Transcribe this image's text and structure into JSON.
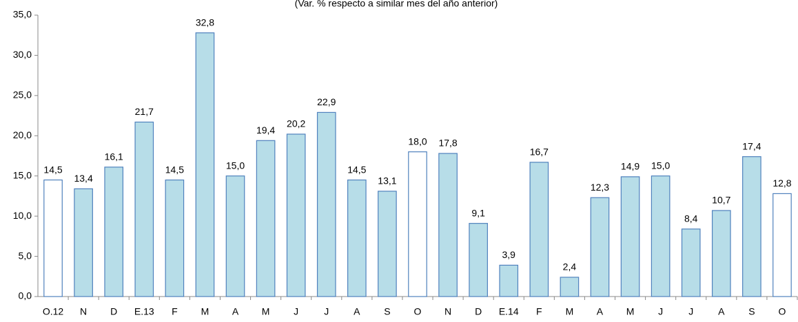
{
  "chart_data": {
    "type": "bar",
    "subtitle": "(Var. % respecto a similar mes del año anterior)",
    "categories": [
      "O.12",
      "N",
      "D",
      "E.13",
      "F",
      "M",
      "A",
      "M",
      "J",
      "J",
      "A",
      "S",
      "O",
      "N",
      "D",
      "E.14",
      "F",
      "M",
      "A",
      "M",
      "J",
      "J",
      "A",
      "S",
      "O"
    ],
    "values": [
      14.5,
      13.4,
      16.1,
      21.7,
      14.5,
      32.8,
      15.0,
      19.4,
      20.2,
      22.9,
      14.5,
      13.1,
      18.0,
      17.8,
      9.1,
      3.9,
      16.7,
      2.4,
      12.3,
      14.9,
      15.0,
      8.4,
      10.7,
      17.4,
      12.8
    ],
    "value_labels": [
      "14,5",
      "13,4",
      "16,1",
      "21,7",
      "14,5",
      "32,8",
      "15,0",
      "19,4",
      "20,2",
      "22,9",
      "14,5",
      "13,1",
      "18,0",
      "17,8",
      "9,1",
      "3,9",
      "16,7",
      "2,4",
      "12,3",
      "14,9",
      "15,0",
      "8,4",
      "10,7",
      "17,4",
      "12,8"
    ],
    "colors": [
      "#ffffff",
      "#b7dde8",
      "#b7dde8",
      "#b7dde8",
      "#b7dde8",
      "#b7dde8",
      "#b7dde8",
      "#b7dde8",
      "#b7dde8",
      "#b7dde8",
      "#b7dde8",
      "#b7dde8",
      "#ffffff",
      "#b7dde8",
      "#b7dde8",
      "#b7dde8",
      "#b7dde8",
      "#b7dde8",
      "#b7dde8",
      "#b7dde8",
      "#b7dde8",
      "#b7dde8",
      "#b7dde8",
      "#b7dde8",
      "#ffffff"
    ],
    "edge_color": "#4f81bd",
    "ylim": [
      0,
      35
    ],
    "yticks": [
      {
        "value": 0,
        "label": "0,0"
      },
      {
        "value": 5,
        "label": "5,0"
      },
      {
        "value": 10,
        "label": "10,0"
      },
      {
        "value": 15,
        "label": "15,0"
      },
      {
        "value": 20,
        "label": "20,0"
      },
      {
        "value": 25,
        "label": "25,0"
      },
      {
        "value": 30,
        "label": "30,0"
      },
      {
        "value": 35,
        "label": "35,0"
      }
    ],
    "grid": false
  }
}
